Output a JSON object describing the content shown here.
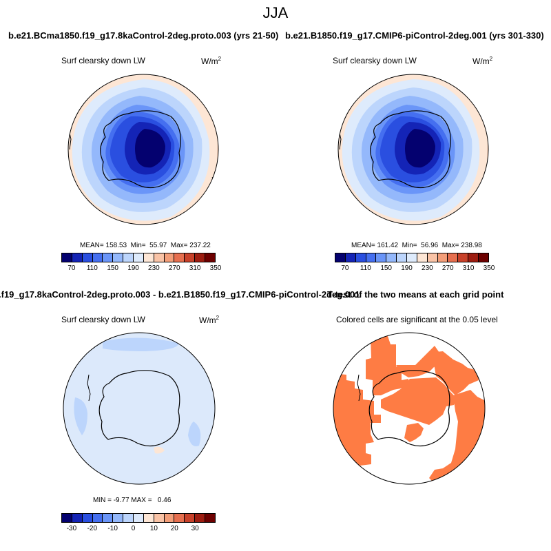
{
  "figure": {
    "title": "JJA"
  },
  "chart_data": [
    {
      "type": "heatmap",
      "title": "b.e21.BCma1850.f19_g17.8kaControl-2deg.proto.003 (yrs 21-50)",
      "variable": "Surf clearsky down LW",
      "units": "W/m",
      "units_superscript": "2",
      "stats": "MEAN= 158.53  Min=  55.97  Max= 237.22",
      "colorbar_levels": [
        70,
        110,
        150,
        190,
        230,
        270,
        310,
        350
      ],
      "colorbar_tick_labels": [
        "70",
        "110",
        "150",
        "190",
        "230",
        "270",
        "310",
        "350"
      ],
      "colorbar_colors": [
        "#04016f",
        "#1424b6",
        "#2a4fe0",
        "#456ff0",
        "#6a95f8",
        "#94b8fb",
        "#bcd5fc",
        "#deebfc",
        "#fde6d5",
        "#f9c3a6",
        "#f39e79",
        "#e66f4f",
        "#c8412a",
        "#9d1c10",
        "#6d0000"
      ],
      "projection": "south-polar-stereographic",
      "field_description": "values lowest over the East Antarctic interior, increasing outward to the Southern Ocean"
    },
    {
      "type": "heatmap",
      "title": "b.e21.B1850.f19_g17.CMIP6-piControl-2deg.001 (yrs 301-330)",
      "variable": "Surf clearsky down LW",
      "units": "W/m",
      "units_superscript": "2",
      "stats": "MEAN= 161.42  Min=  56.96  Max= 238.98",
      "colorbar_levels": [
        70,
        110,
        150,
        190,
        230,
        270,
        310,
        350
      ],
      "colorbar_tick_labels": [
        "70",
        "110",
        "150",
        "190",
        "230",
        "270",
        "310",
        "350"
      ],
      "colorbar_colors": [
        "#04016f",
        "#1424b6",
        "#2a4fe0",
        "#456ff0",
        "#6a95f8",
        "#94b8fb",
        "#bcd5fc",
        "#deebfc",
        "#fde6d5",
        "#f9c3a6",
        "#f39e79",
        "#e66f4f",
        "#c8412a",
        "#9d1c10",
        "#6d0000"
      ],
      "projection": "south-polar-stereographic"
    },
    {
      "type": "heatmap",
      "title": ".f19_g17.8kaControl-2deg.proto.003 - b.e21.B1850.f19_g17.CMIP6-piControl-2deg.001",
      "variable": "Surf clearsky down LW",
      "units": "W/m",
      "units_superscript": "2",
      "stats": "MIN = -9.77 MAX =   0.46",
      "colorbar_levels": [
        -30,
        -20,
        -10,
        0,
        10,
        20,
        30
      ],
      "colorbar_tick_labels": [
        "-30",
        "-20",
        "-10",
        "0",
        "10",
        "20",
        "30"
      ],
      "colorbar_colors": [
        "#04016f",
        "#1424b6",
        "#2a4fe0",
        "#456ff0",
        "#6a95f8",
        "#94b8fb",
        "#bcd5fc",
        "#dce9fb",
        "#fde6d5",
        "#f9c3a6",
        "#f39e79",
        "#e66f4f",
        "#c8412a",
        "#9d1c10",
        "#6d0000"
      ],
      "projection": "south-polar-stereographic"
    },
    {
      "type": "heatmap",
      "title": "T-test of the two means at each grid point",
      "subtitle": "Colored cells are significant at the 0.05 level",
      "significant_color": "#fe7c44",
      "projection": "south-polar-stereographic"
    }
  ]
}
